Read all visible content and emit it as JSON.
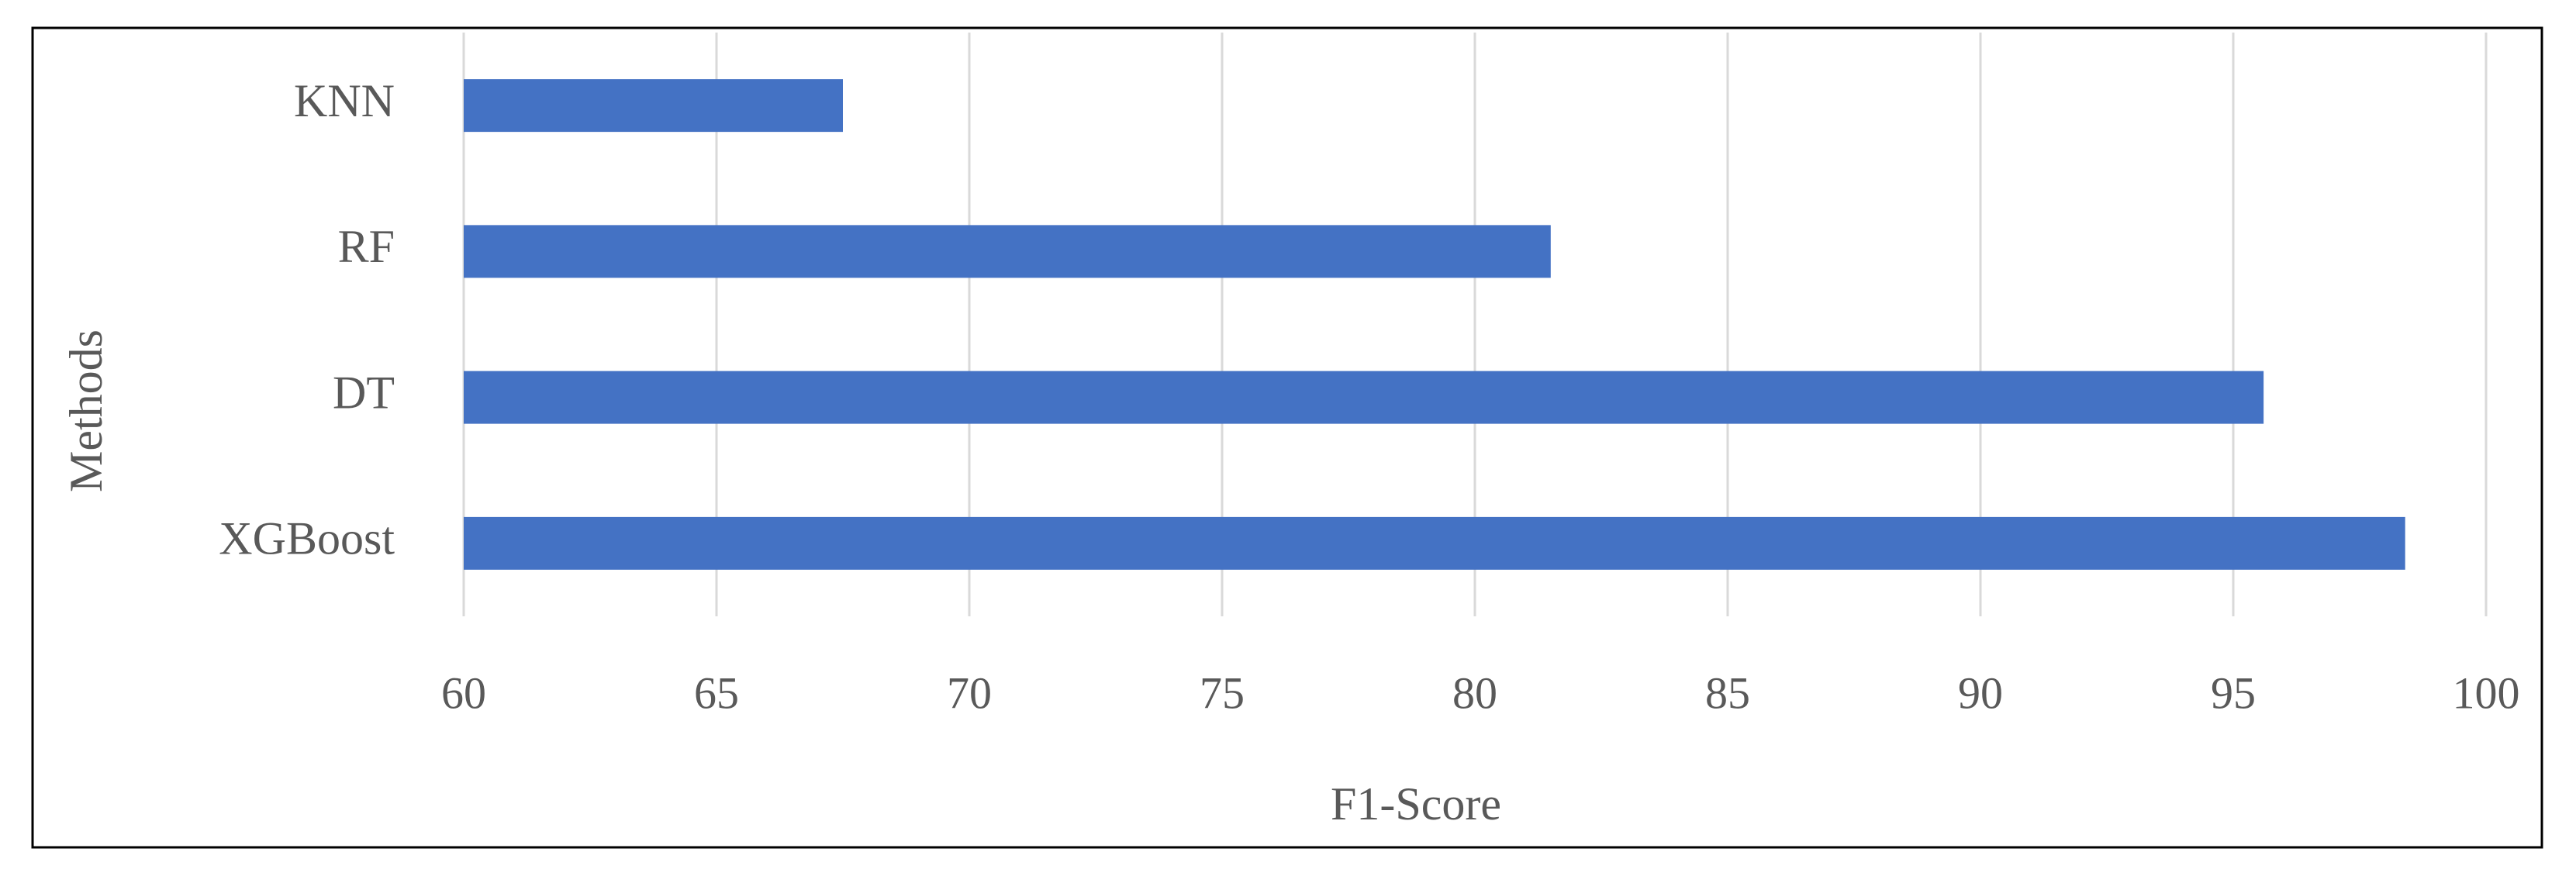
{
  "chart_data": {
    "type": "bar",
    "orientation": "horizontal",
    "x_label": "F1-Score",
    "y_label": "Methods",
    "categories": [
      "KNN",
      "RF",
      "DT",
      "XGBoost"
    ],
    "values": [
      67.5,
      81.5,
      95.6,
      98.4
    ],
    "color": "#4472c4",
    "xlim": [
      60,
      100
    ],
    "xticks": [
      60,
      65,
      70,
      75,
      80,
      85,
      90,
      95,
      100
    ],
    "grid": true
  }
}
